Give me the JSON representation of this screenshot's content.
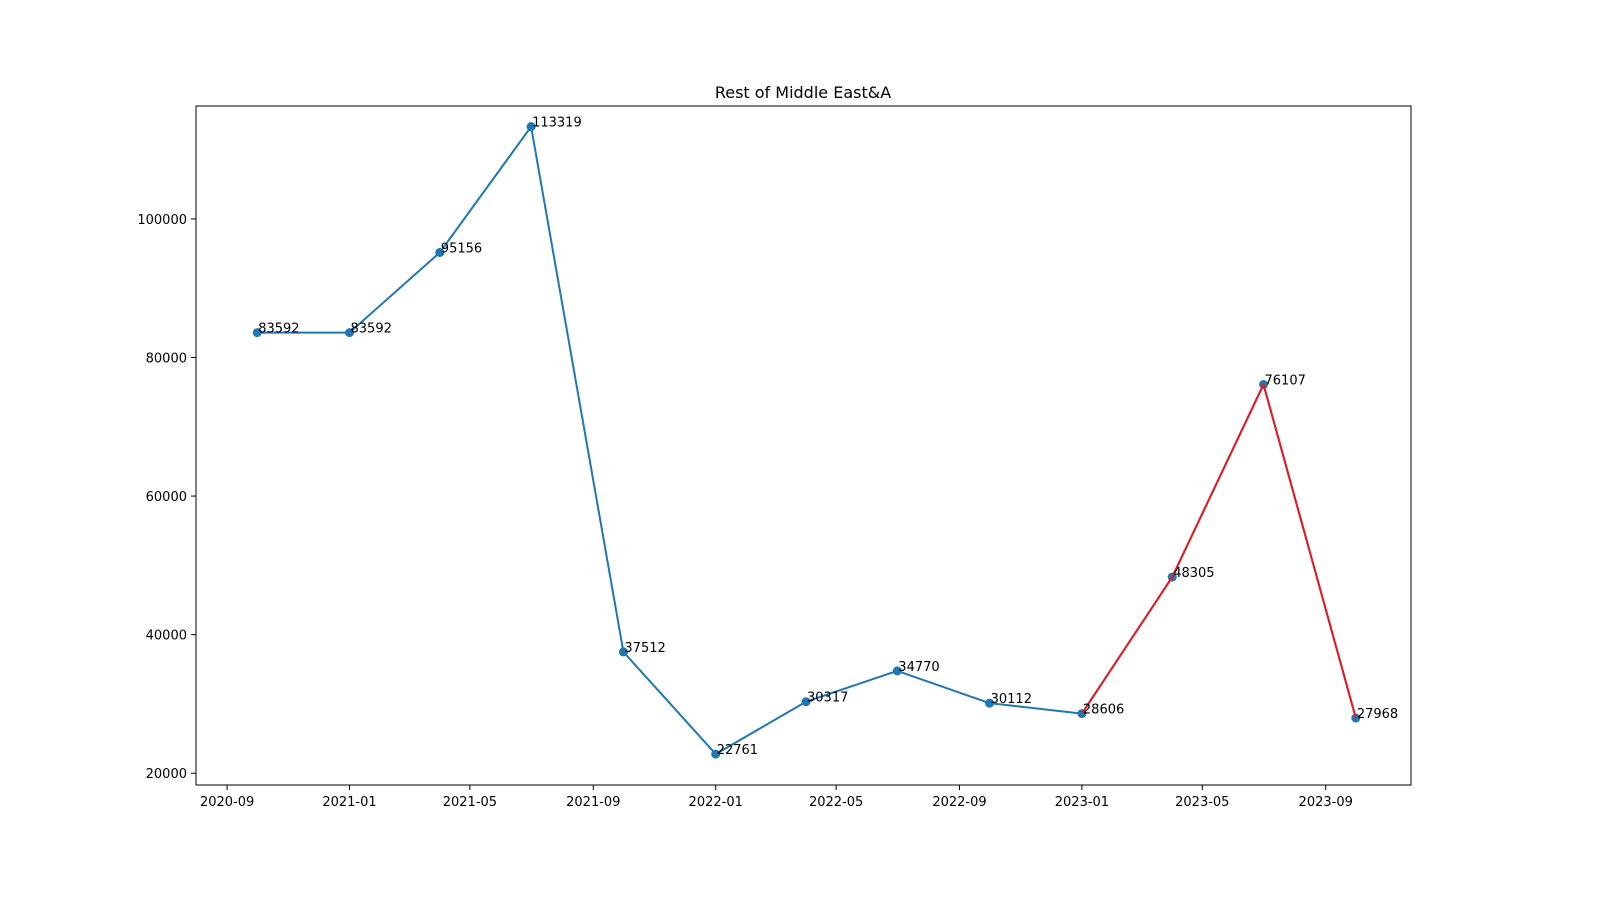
{
  "chart_data": {
    "type": "line",
    "title": "Rest of Middle East&A",
    "xlabel": "",
    "ylabel": "",
    "x_ticks": [
      "2020-09",
      "2021-01",
      "2021-05",
      "2021-09",
      "2022-01",
      "2022-05",
      "2022-09",
      "2023-01",
      "2023-05",
      "2023-09"
    ],
    "y_ticks": [
      20000,
      40000,
      60000,
      80000,
      100000
    ],
    "xlim": [
      "2020-08-01",
      "2023-11-25"
    ],
    "ylim": [
      18300,
      116300
    ],
    "grid": false,
    "legend": "none",
    "series": [
      {
        "color": "#1f77b4",
        "marker": "circle",
        "points": [
          {
            "x": "2020-10-01",
            "y": 83592,
            "label": "83592"
          },
          {
            "x": "2021-01-01",
            "y": 83592,
            "label": "83592"
          },
          {
            "x": "2021-04-01",
            "y": 95156,
            "label": "95156"
          },
          {
            "x": "2021-07-01",
            "y": 113319,
            "label": "113319"
          },
          {
            "x": "2021-10-01",
            "y": 37512,
            "label": "37512"
          },
          {
            "x": "2022-01-01",
            "y": 22761,
            "label": "22761"
          },
          {
            "x": "2022-04-01",
            "y": 30317,
            "label": "30317"
          },
          {
            "x": "2022-07-01",
            "y": 34770,
            "label": "34770"
          },
          {
            "x": "2022-10-01",
            "y": 30112,
            "label": "30112"
          },
          {
            "x": "2023-01-01",
            "y": 28606,
            "label": "28606"
          },
          {
            "x": "2023-04-01",
            "y": 48305,
            "label": "48305"
          },
          {
            "x": "2023-07-01",
            "y": 76107,
            "label": "76107"
          },
          {
            "x": "2023-10-01",
            "y": 27968,
            "label": "27968"
          }
        ]
      },
      {
        "color": "#e8191f",
        "marker": "none",
        "points": [
          {
            "x": "2023-01-01",
            "y": 28606
          },
          {
            "x": "2023-04-01",
            "y": 48305
          },
          {
            "x": "2023-07-01",
            "y": 76107
          },
          {
            "x": "2023-10-01",
            "y": 27968
          }
        ]
      }
    ]
  }
}
